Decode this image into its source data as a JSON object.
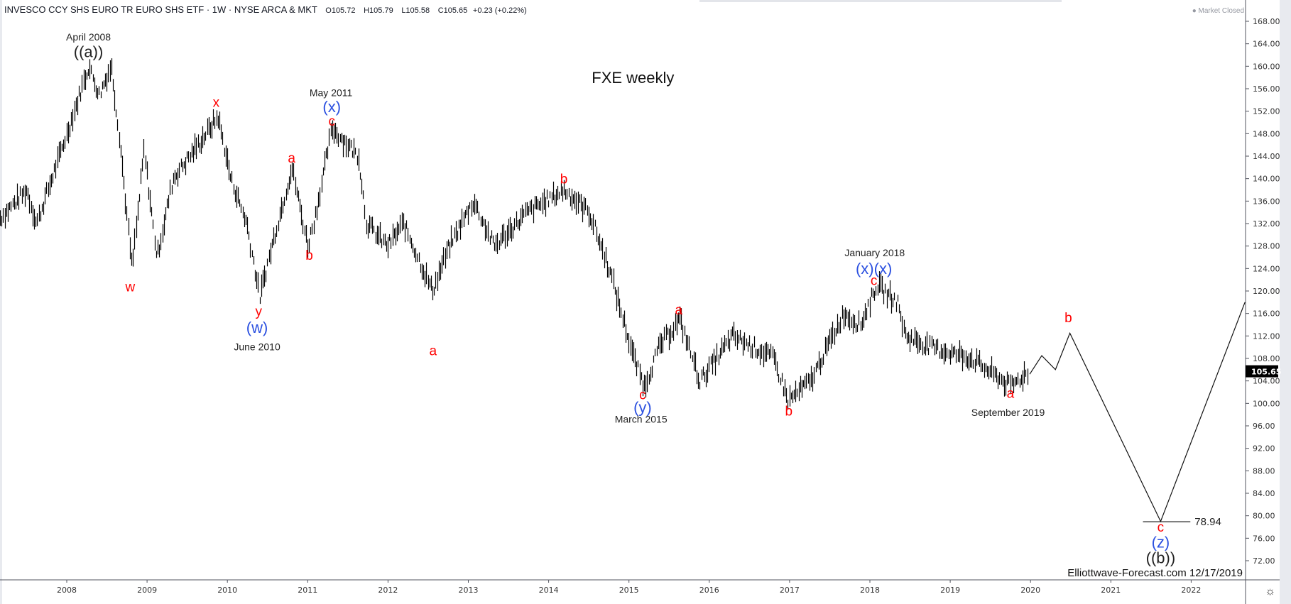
{
  "header": {
    "symbol": "INVESCO CCY SHS EURO TR EURO SHS ETF · 1W · NYSE ARCA & MKT",
    "open": "O105.72",
    "high": "H105.79",
    "low": "L105.58",
    "close": "C105.65",
    "change": "+0.23 (+0.22%)"
  },
  "market_status": "Market Closed",
  "settings_icon": "gear-icon",
  "chart_data": {
    "type": "ohlc-bar",
    "title": "FXE weekly",
    "watermark": "Elliottwave-Forecast.com 12/17/2019",
    "last_price": "105.65",
    "colors": {
      "bars": "#000000",
      "wave_red": "#ff0000",
      "wave_blue": "#2b50e0",
      "text": "#222222"
    },
    "y_axis": {
      "ticks": [
        "168.00",
        "164.00",
        "160.00",
        "156.00",
        "152.00",
        "148.00",
        "144.00",
        "140.00",
        "136.00",
        "132.00",
        "128.00",
        "124.00",
        "120.00",
        "116.00",
        "112.00",
        "108.00",
        "104.00",
        "100.00",
        "96.00",
        "92.00",
        "88.00",
        "84.00",
        "80.00",
        "76.00",
        "72.00"
      ],
      "range": [
        68,
        172
      ],
      "position": "right"
    },
    "x_axis": {
      "ticks": [
        "2008",
        "2009",
        "2010",
        "2011",
        "2012",
        "2013",
        "2014",
        "2015",
        "2016",
        "2017",
        "2018",
        "2019",
        "2020",
        "2021",
        "2022"
      ],
      "range": [
        2007.17,
        2022.7
      ]
    },
    "grid": false,
    "price_path_approx": [
      [
        2007.17,
        133
      ],
      [
        2007.5,
        138
      ],
      [
        2007.62,
        132
      ],
      [
        2008.0,
        148
      ],
      [
        2008.27,
        160
      ],
      [
        2008.4,
        155
      ],
      [
        2008.55,
        160
      ],
      [
        2008.65,
        148
      ],
      [
        2008.81,
        124
      ],
      [
        2008.96,
        145
      ],
      [
        2009.12,
        126
      ],
      [
        2009.32,
        140
      ],
      [
        2009.63,
        146
      ],
      [
        2009.88,
        151
      ],
      [
        2010.04,
        140
      ],
      [
        2010.24,
        132
      ],
      [
        2010.4,
        119
      ],
      [
        2010.55,
        128
      ],
      [
        2010.8,
        142
      ],
      [
        2011.0,
        128
      ],
      [
        2011.1,
        134
      ],
      [
        2011.3,
        149
      ],
      [
        2011.63,
        144
      ],
      [
        2011.73,
        132
      ],
      [
        2011.99,
        128
      ],
      [
        2012.19,
        132
      ],
      [
        2012.55,
        120
      ],
      [
        2012.76,
        128
      ],
      [
        2013.06,
        136
      ],
      [
        2013.32,
        128
      ],
      [
        2013.73,
        134
      ],
      [
        2014.19,
        138
      ],
      [
        2014.5,
        134
      ],
      [
        2014.75,
        124
      ],
      [
        2015.06,
        108
      ],
      [
        2015.19,
        103
      ],
      [
        2015.37,
        110
      ],
      [
        2015.63,
        115
      ],
      [
        2015.88,
        104
      ],
      [
        2016.29,
        112
      ],
      [
        2016.8,
        108
      ],
      [
        2016.98,
        100.5
      ],
      [
        2017.26,
        104
      ],
      [
        2017.67,
        116
      ],
      [
        2017.88,
        114
      ],
      [
        2018.08,
        121
      ],
      [
        2018.34,
        118
      ],
      [
        2018.44,
        112
      ],
      [
        2018.75,
        110
      ],
      [
        2019.26,
        108
      ],
      [
        2019.75,
        103
      ],
      [
        2019.97,
        105.65
      ]
    ],
    "projection": [
      [
        2019.99,
        105.2
      ],
      [
        2020.14,
        108.5
      ],
      [
        2020.31,
        106
      ],
      [
        2020.49,
        112.5
      ],
      [
        2021.62,
        79
      ],
      [
        2022.67,
        118
      ]
    ],
    "target_level": {
      "value": 78.94,
      "label": "78.94",
      "x_from": 2021.4,
      "x_to": 2021.99
    },
    "wave_labels": [
      {
        "text": "April 2008",
        "color": "text",
        "x": 2008.27,
        "y": 165.2,
        "size": 14
      },
      {
        "text": "((a))",
        "color": "text",
        "x": 2008.27,
        "y": 162.6,
        "size": 22
      },
      {
        "text": "w",
        "color": "wave_red",
        "x": 2008.79,
        "y": 120.8,
        "size": 19
      },
      {
        "text": "x",
        "color": "wave_red",
        "x": 2009.86,
        "y": 153.6,
        "size": 19
      },
      {
        "text": "y",
        "color": "wave_red",
        "x": 2010.39,
        "y": 116.4,
        "size": 19
      },
      {
        "text": "(w)",
        "color": "wave_blue",
        "x": 2010.37,
        "y": 113.5,
        "size": 22
      },
      {
        "text": "June 2010",
        "color": "text",
        "x": 2010.37,
        "y": 110.1,
        "size": 14
      },
      {
        "text": "a",
        "color": "wave_red",
        "x": 2010.8,
        "y": 143.7,
        "size": 19
      },
      {
        "text": "b",
        "color": "wave_red",
        "x": 2011.02,
        "y": 126.4,
        "size": 19
      },
      {
        "text": "May 2011",
        "color": "text",
        "x": 2011.29,
        "y": 155.3,
        "size": 14
      },
      {
        "text": "(x)",
        "color": "wave_blue",
        "x": 2011.3,
        "y": 152.8,
        "size": 22
      },
      {
        "text": "c",
        "color": "wave_red",
        "x": 2011.3,
        "y": 150.3,
        "size": 19
      },
      {
        "text": "a",
        "color": "wave_red",
        "x": 2012.56,
        "y": 109.4,
        "size": 19
      },
      {
        "text": "b",
        "color": "wave_red",
        "x": 2014.19,
        "y": 140.0,
        "size": 19
      },
      {
        "text": "c",
        "color": "wave_red",
        "x": 2015.17,
        "y": 101.6,
        "size": 19
      },
      {
        "text": "(y)",
        "color": "wave_blue",
        "x": 2015.17,
        "y": 99.3,
        "size": 22
      },
      {
        "text": "March 2015",
        "color": "text",
        "x": 2015.15,
        "y": 97.2,
        "size": 14
      },
      {
        "text": "a",
        "color": "wave_red",
        "x": 2015.62,
        "y": 116.7,
        "size": 19
      },
      {
        "text": "b",
        "color": "wave_red",
        "x": 2016.99,
        "y": 98.7,
        "size": 19
      },
      {
        "text": "January 2018",
        "color": "text",
        "x": 2018.06,
        "y": 126.8,
        "size": 14
      },
      {
        "text": "(x)(x)",
        "color": "wave_blue",
        "x": 2018.05,
        "y": 124.0,
        "size": 22
      },
      {
        "text": "c",
        "color": "wave_red",
        "x": 2018.05,
        "y": 121.9,
        "size": 19
      },
      {
        "text": "a",
        "color": "wave_red",
        "x": 2019.75,
        "y": 101.8,
        "size": 19
      },
      {
        "text": "September 2019",
        "color": "text",
        "x": 2019.72,
        "y": 98.4,
        "size": 14
      },
      {
        "text": "b",
        "color": "wave_red",
        "x": 2020.47,
        "y": 115.3,
        "size": 19
      },
      {
        "text": "c",
        "color": "wave_red",
        "x": 2021.62,
        "y": 78.0,
        "size": 19
      },
      {
        "text": "(z)",
        "color": "wave_blue",
        "x": 2021.62,
        "y": 75.3,
        "size": 22
      },
      {
        "text": "((b))",
        "color": "text",
        "x": 2021.62,
        "y": 72.5,
        "size": 22
      }
    ]
  }
}
